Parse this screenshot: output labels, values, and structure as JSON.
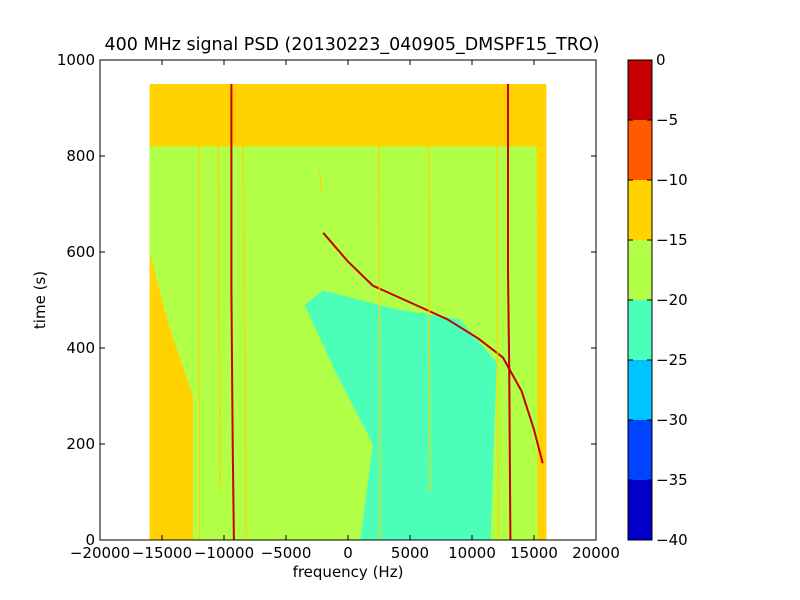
{
  "chart_data": {
    "type": "heatmap",
    "title": "400 MHz signal PSD (20130223_040905_DMSPF15_TRO)",
    "xlabel": "frequency (Hz)",
    "ylabel": "time (s)",
    "xlim": [
      -20000,
      20000
    ],
    "ylim": [
      0,
      1000
    ],
    "xticks": [
      -20000,
      -15000,
      -10000,
      -5000,
      0,
      5000,
      10000,
      15000,
      20000
    ],
    "xtick_labels": [
      "−20000",
      "−15000",
      "−10000",
      "−5000",
      "0",
      "5000",
      "10000",
      "15000",
      "20000"
    ],
    "yticks": [
      0,
      200,
      400,
      600,
      800,
      1000
    ],
    "ytick_labels": [
      "0",
      "200",
      "400",
      "600",
      "800",
      "1000"
    ],
    "data_extent": {
      "x": [
        -16000,
        16000
      ],
      "y": [
        0,
        950
      ]
    },
    "colorbar": {
      "range": [
        -40,
        0
      ],
      "levels": [
        -40,
        -35,
        -30,
        -25,
        -20,
        -15,
        -10,
        -5,
        0
      ],
      "level_labels": [
        "−40",
        "−35",
        "−30",
        "−25",
        "−20",
        "−15",
        "−10",
        "−5",
        "0"
      ],
      "colors": [
        "#0000c8",
        "#0044ff",
        "#00c4ff",
        "#4cffb8",
        "#b2ff48",
        "#ffd200",
        "#ff5a00",
        "#c80000"
      ]
    },
    "regions": [
      {
        "level": "-15..-10",
        "description": "edges and top band",
        "polygon": [
          [
            -16000,
            0
          ],
          [
            16000,
            0
          ],
          [
            16000,
            950
          ],
          [
            -16000,
            950
          ]
        ]
      },
      {
        "level": "-20..-15",
        "description": "central body",
        "polygon": [
          [
            -12500,
            0
          ],
          [
            15300,
            0
          ],
          [
            15200,
            820
          ],
          [
            -16000,
            820
          ],
          [
            -16000,
            600
          ],
          [
            -14500,
            450
          ],
          [
            -12500,
            300
          ]
        ]
      },
      {
        "level": "-25..-20",
        "description": "low power region",
        "polygon": [
          [
            1000,
            0
          ],
          [
            11500,
            0
          ],
          [
            12000,
            370
          ],
          [
            9000,
            460
          ],
          [
            4000,
            480
          ],
          [
            -2000,
            520
          ],
          [
            -3500,
            490
          ],
          [
            -1000,
            350
          ],
          [
            2000,
            200
          ]
        ]
      }
    ],
    "lines": [
      {
        "name": "carrier_left",
        "level": "-5..0",
        "points": [
          [
            -9400,
            950
          ],
          [
            -9400,
            520
          ],
          [
            -9300,
            200
          ],
          [
            -9200,
            0
          ]
        ]
      },
      {
        "name": "carrier_right",
        "level": "-5..0",
        "points": [
          [
            12900,
            950
          ],
          [
            12900,
            560
          ],
          [
            13000,
            360
          ],
          [
            13100,
            0
          ]
        ]
      },
      {
        "name": "doppler_trace",
        "level": "-5..0",
        "points": [
          [
            -2000,
            640
          ],
          [
            0,
            580
          ],
          [
            2000,
            530
          ],
          [
            5000,
            495
          ],
          [
            8000,
            460
          ],
          [
            10500,
            420
          ],
          [
            12500,
            380
          ],
          [
            14000,
            310
          ],
          [
            15000,
            230
          ],
          [
            15700,
            160
          ]
        ]
      },
      {
        "name": "minor_streak",
        "level": "-15..-10",
        "points": [
          [
            -12000,
            950
          ],
          [
            -12000,
            0
          ]
        ]
      },
      {
        "name": "minor_streak",
        "level": "-15..-10",
        "points": [
          [
            -8500,
            950
          ],
          [
            -8200,
            0
          ]
        ]
      },
      {
        "name": "minor_streak",
        "level": "-15..-10",
        "points": [
          [
            -10500,
            950
          ],
          [
            -10300,
            100
          ]
        ]
      },
      {
        "name": "minor_streak",
        "level": "-15..-10",
        "points": [
          [
            12000,
            950
          ],
          [
            12100,
            0
          ]
        ]
      },
      {
        "name": "minor_streak",
        "level": "-15..-10",
        "points": [
          [
            2500,
            820
          ],
          [
            2600,
            0
          ]
        ]
      },
      {
        "name": "minor_streak",
        "level": "-15..-10",
        "points": [
          [
            6500,
            820
          ],
          [
            6600,
            100
          ]
        ]
      },
      {
        "name": "minor_streak",
        "level": "-15..-10",
        "points": [
          [
            -2300,
            770
          ],
          [
            -2100,
            720
          ]
        ]
      }
    ]
  }
}
